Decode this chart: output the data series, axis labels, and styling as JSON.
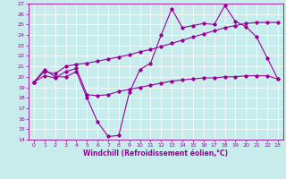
{
  "xlabel": "Windchill (Refroidissement éolien,°C)",
  "background_color": "#c8ecec",
  "line_color": "#990099",
  "grid_color": "#ffffff",
  "xlim": [
    -0.5,
    23.5
  ],
  "ylim": [
    14,
    27
  ],
  "xticks": [
    0,
    1,
    2,
    3,
    4,
    5,
    6,
    7,
    8,
    9,
    10,
    11,
    12,
    13,
    14,
    15,
    16,
    17,
    18,
    19,
    20,
    21,
    22,
    23
  ],
  "yticks": [
    14,
    15,
    16,
    17,
    18,
    19,
    20,
    21,
    22,
    23,
    24,
    25,
    26,
    27
  ],
  "line1_x": [
    0,
    1,
    2,
    3,
    4,
    5,
    6,
    7,
    8,
    9,
    10,
    11,
    12,
    13,
    14,
    15,
    16,
    17,
    18,
    19,
    20,
    21,
    22,
    23
  ],
  "line1_y": [
    19.5,
    20.7,
    20.0,
    20.0,
    20.5,
    18.0,
    15.7,
    14.3,
    14.4,
    18.5,
    20.7,
    21.3,
    24.0,
    26.5,
    24.7,
    24.9,
    25.1,
    25.0,
    26.8,
    25.3,
    24.8,
    23.8,
    21.8,
    19.8
  ],
  "line2_x": [
    0,
    1,
    2,
    3,
    4,
    5,
    6,
    7,
    8,
    9,
    10,
    11,
    12,
    13,
    14,
    15,
    16,
    17,
    18,
    19,
    20,
    21,
    22,
    23
  ],
  "line2_y": [
    19.5,
    20.1,
    19.9,
    20.5,
    20.8,
    18.3,
    18.2,
    18.3,
    18.6,
    18.8,
    19.0,
    19.2,
    19.4,
    19.6,
    19.7,
    19.8,
    19.9,
    19.9,
    20.0,
    20.0,
    20.1,
    20.1,
    20.1,
    19.8
  ],
  "line3_x": [
    0,
    1,
    2,
    3,
    4,
    5,
    6,
    7,
    8,
    9,
    10,
    11,
    12,
    13,
    14,
    15,
    16,
    17,
    18,
    19,
    20,
    21,
    22,
    23
  ],
  "line3_y": [
    19.5,
    20.5,
    20.3,
    21.0,
    21.2,
    21.3,
    21.5,
    21.7,
    21.9,
    22.1,
    22.4,
    22.6,
    22.9,
    23.2,
    23.5,
    23.8,
    24.1,
    24.4,
    24.7,
    24.9,
    25.1,
    25.2,
    25.2,
    25.2
  ],
  "xlabel_fontsize": 5.5,
  "tick_fontsize": 4.5,
  "linewidth": 0.8,
  "markersize": 1.8
}
